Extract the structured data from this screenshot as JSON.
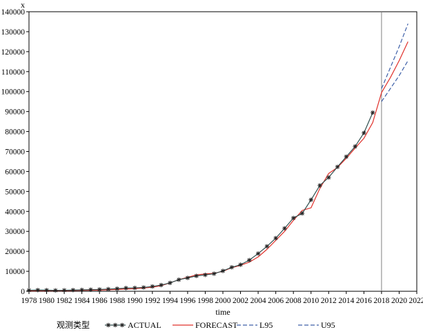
{
  "chart_data": {
    "type": "line",
    "title": "",
    "ylabel": "x",
    "xlabel": "time",
    "xlim": [
      1978,
      2022
    ],
    "ylim": [
      0,
      140000
    ],
    "grid": false,
    "legend_title": "观测类型",
    "legend_position": "bottom",
    "xticks": [
      1978,
      1980,
      1982,
      1984,
      1986,
      1988,
      1990,
      1992,
      1994,
      1996,
      1998,
      2000,
      2002,
      2004,
      2006,
      2008,
      2010,
      2012,
      2014,
      2016,
      2018,
      2020,
      2022
    ],
    "xtick_labels": [
      "1978",
      "1980",
      "1982",
      "1984",
      "1986",
      "1988",
      "1990",
      "1992",
      "1994",
      "1996",
      "1998",
      "2000",
      "2002",
      "2004",
      "2006",
      "2008",
      "2010",
      "2012",
      "2014",
      "2016",
      "2018",
      "2020",
      "2022"
    ],
    "yticks": [
      0,
      10000,
      20000,
      30000,
      40000,
      50000,
      60000,
      70000,
      80000,
      90000,
      100000,
      110000,
      120000,
      130000,
      140000
    ],
    "ytick_labels": [
      "0",
      "10000",
      "20000",
      "30000",
      "40000",
      "50000",
      "60000",
      "70000",
      "80000",
      "90000",
      "100000",
      "110000",
      "120000",
      "130000",
      "140000"
    ],
    "forecast_start": 2018,
    "colors": {
      "actual": "#2f4f4f",
      "forecast": "#e0302a",
      "l95": "#3d5fa8",
      "u95": "#3d5fa8",
      "refline": "#808080"
    },
    "series": [
      {
        "name": "ACTUAL",
        "x": [
          1978,
          1979,
          1980,
          1981,
          1982,
          1983,
          1984,
          1985,
          1986,
          1987,
          1988,
          1989,
          1990,
          1991,
          1992,
          1993,
          1994,
          1995,
          1996,
          1997,
          1998,
          1999,
          2000,
          2001,
          2002,
          2003,
          2004,
          2005,
          2006,
          2007,
          2008,
          2009,
          2010,
          2011,
          2012,
          2013,
          2014,
          2015,
          2016,
          2017
        ],
        "y": [
          500,
          600,
          550,
          450,
          500,
          600,
          700,
          800,
          900,
          1100,
          1300,
          1600,
          1700,
          1900,
          2400,
          3100,
          4200,
          5800,
          6700,
          7700,
          8200,
          8800,
          10200,
          12000,
          13300,
          15600,
          18900,
          22500,
          26600,
          31500,
          36700,
          39000,
          45800,
          53000,
          57000,
          62300,
          67400,
          72500,
          79300,
          89500
        ]
      },
      {
        "name": "FORECAST",
        "x": [
          1978,
          1980,
          1982,
          1984,
          1986,
          1988,
          1990,
          1992,
          1993,
          1994,
          1995,
          1996,
          1997,
          1998,
          1999,
          2000,
          2001,
          2002,
          2003,
          2004,
          2005,
          2006,
          2007,
          2008,
          2009,
          2010,
          2011,
          2012,
          2013,
          2014,
          2015,
          2016,
          2017,
          2018,
          2019,
          2020,
          2021
        ],
        "y": [
          300,
          350,
          350,
          450,
          600,
          900,
          1300,
          2000,
          2800,
          4200,
          5800,
          7000,
          8200,
          8700,
          9000,
          10000,
          11800,
          13000,
          14600,
          17200,
          21000,
          25500,
          30000,
          35500,
          40500,
          41800,
          51500,
          59000,
          62000,
          66600,
          71700,
          76600,
          84500,
          99500,
          107000,
          115500,
          125000
        ]
      },
      {
        "name": "L95",
        "x": [
          2018,
          2019,
          2020,
          2021
        ],
        "y": [
          95000,
          101500,
          108000,
          115500
        ]
      },
      {
        "name": "U95",
        "x": [
          2018,
          2019,
          2020,
          2021
        ],
        "y": [
          101500,
          112000,
          122500,
          134000
        ]
      }
    ]
  }
}
